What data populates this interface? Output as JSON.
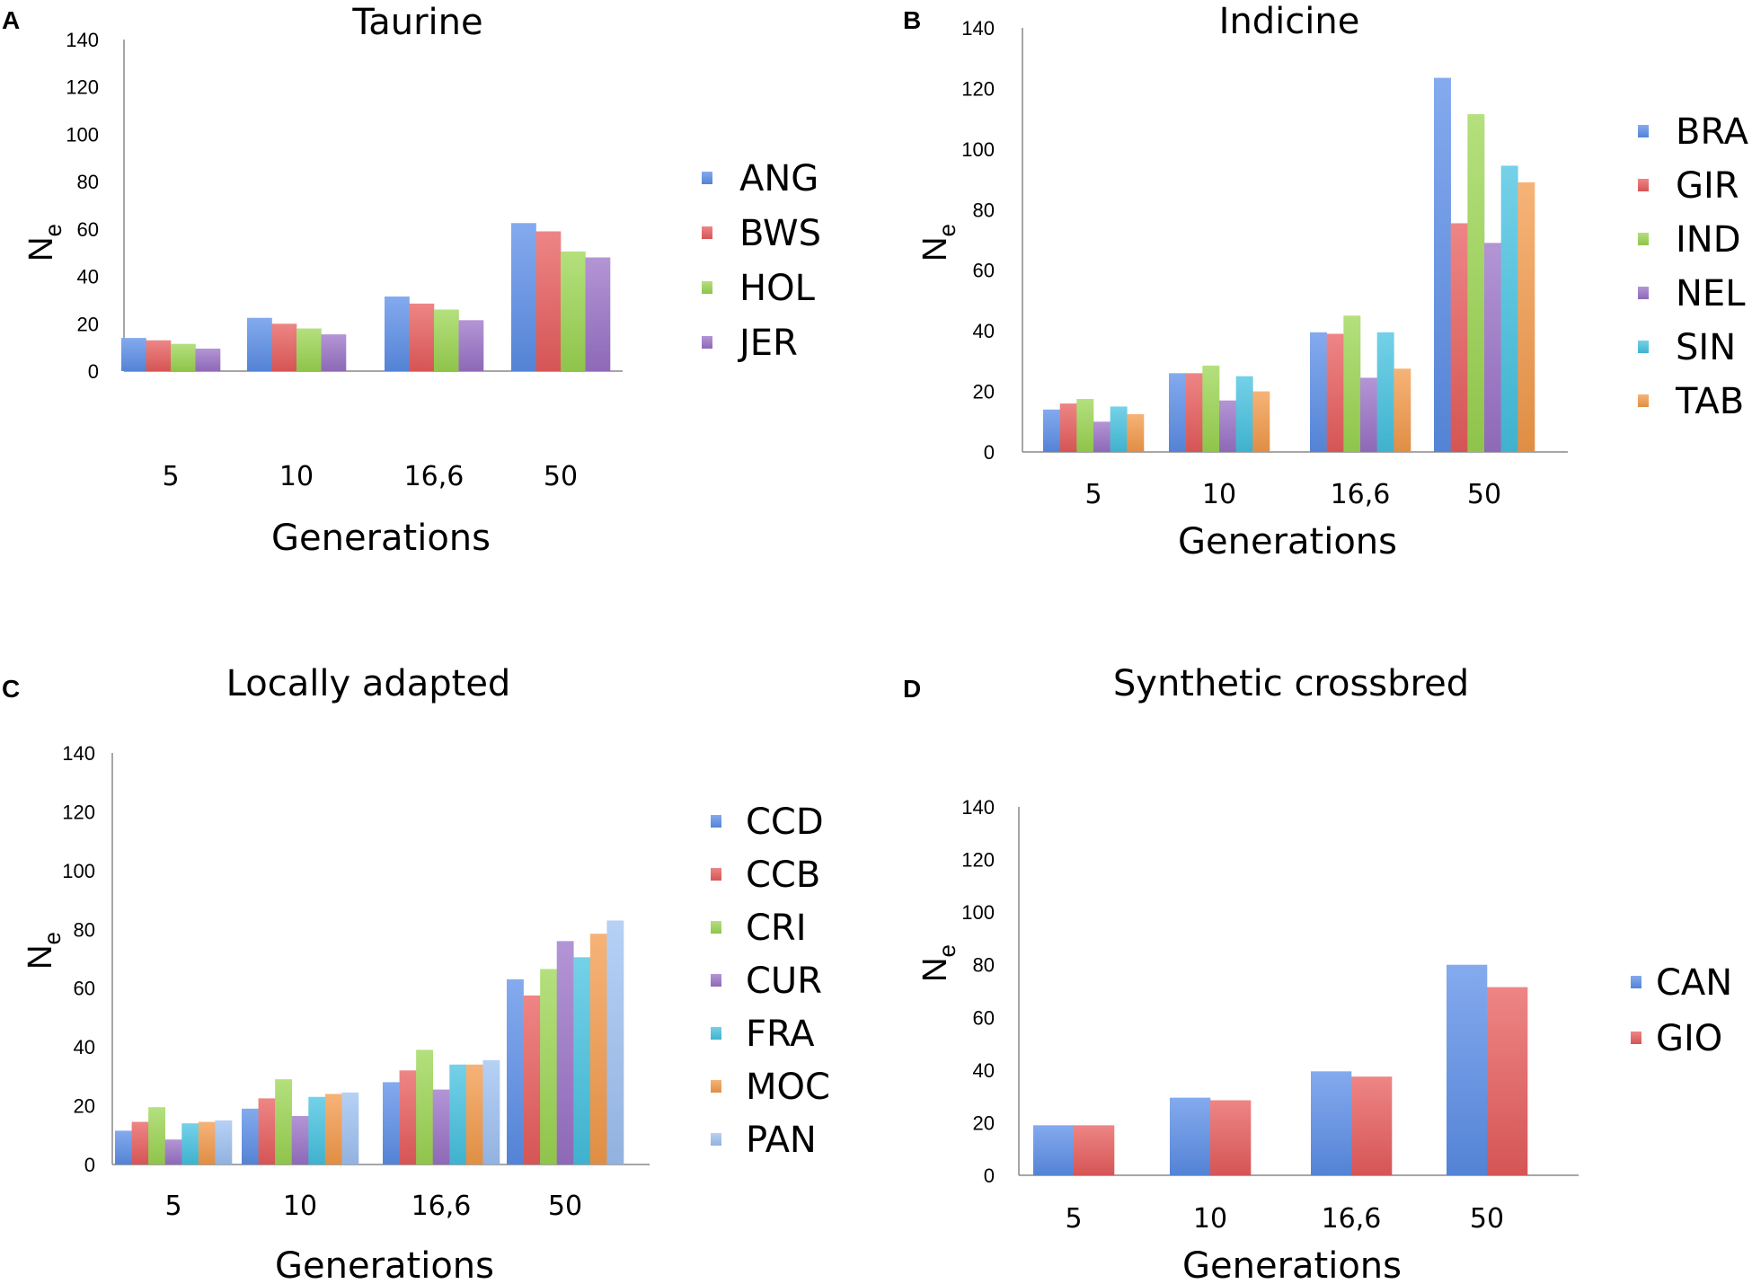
{
  "colors": {
    "ANG": "#5b8ee8",
    "BWS": "#e85c5c",
    "HOL": "#9bd552",
    "JER": "#9a72c7",
    "BRA": "#5b8ee8",
    "GIR": "#e85c5c",
    "IND": "#9bd552",
    "NEL": "#9a72c7",
    "SIN": "#45c1e0",
    "TAB": "#f39a4a",
    "CCD": "#5b8ee8",
    "CCB": "#e85c5c",
    "CRI": "#9bd552",
    "CUR": "#9a72c7",
    "FRA": "#45c1e0",
    "MOC": "#f39a4a",
    "PAN": "#9fc2f2",
    "CAN": "#5b8ee8",
    "GIO": "#e85c5c"
  },
  "chart_data": [
    {
      "panel": "A",
      "type": "bar",
      "title": "Taurine",
      "xlabel": "Generations",
      "ylabel": "N",
      "ylabel_sub": "e",
      "ylim": [
        0,
        140
      ],
      "yticks": [
        "0",
        "20",
        "40",
        "60",
        "80",
        "100",
        "120",
        "140"
      ],
      "categories": [
        "5",
        "10",
        "16,6",
        "50"
      ],
      "legend_position": "right",
      "series": [
        {
          "name": "ANG",
          "values": [
            14,
            22.5,
            31.5,
            62.5
          ]
        },
        {
          "name": "BWS",
          "values": [
            13,
            20,
            28.5,
            59
          ]
        },
        {
          "name": "HOL",
          "values": [
            11.5,
            18,
            26,
            50.5
          ]
        },
        {
          "name": "JER",
          "values": [
            9.5,
            15.5,
            21.5,
            48
          ]
        }
      ]
    },
    {
      "panel": "B",
      "type": "bar",
      "title": "Indicine",
      "xlabel": "Generations",
      "ylabel": "N",
      "ylabel_sub": "e",
      "ylim": [
        0,
        140
      ],
      "yticks": [
        "0",
        "20",
        "40",
        "60",
        "80",
        "100",
        "120",
        "140"
      ],
      "categories": [
        "5",
        "10",
        "16,6",
        "50"
      ],
      "legend_position": "right",
      "series": [
        {
          "name": "BRA",
          "values": [
            14,
            26,
            39.5,
            123.5
          ]
        },
        {
          "name": "GIR",
          "values": [
            16,
            26,
            39,
            75.5
          ]
        },
        {
          "name": "IND",
          "values": [
            17.5,
            28.5,
            45,
            111.5
          ]
        },
        {
          "name": "NEL",
          "values": [
            10,
            17,
            24.5,
            69
          ]
        },
        {
          "name": "SIN",
          "values": [
            15,
            25,
            39.5,
            94.5
          ]
        },
        {
          "name": "TAB",
          "values": [
            12.5,
            20,
            27.5,
            89
          ]
        }
      ]
    },
    {
      "panel": "C",
      "type": "bar",
      "title": "Locally adapted",
      "xlabel": "Generations",
      "ylabel": "N",
      "ylabel_sub": "e",
      "ylim": [
        0,
        140
      ],
      "yticks": [
        "0",
        "20",
        "40",
        "60",
        "80",
        "100",
        "120",
        "140"
      ],
      "categories": [
        "5",
        "10",
        "16,6",
        "50"
      ],
      "legend_position": "right",
      "series": [
        {
          "name": "CCD",
          "values": [
            11.5,
            19,
            28,
            63
          ]
        },
        {
          "name": "CCB",
          "values": [
            14.5,
            22.5,
            32,
            57.5
          ]
        },
        {
          "name": "CRI",
          "values": [
            19.5,
            29,
            39,
            66.5
          ]
        },
        {
          "name": "CUR",
          "values": [
            8.5,
            16.5,
            25.5,
            76
          ]
        },
        {
          "name": "FRA",
          "values": [
            14,
            23,
            34,
            70.5
          ]
        },
        {
          "name": "MOC",
          "values": [
            14.5,
            24,
            34,
            78.5
          ]
        },
        {
          "name": "PAN",
          "values": [
            15,
            24.5,
            35.5,
            83
          ]
        }
      ]
    },
    {
      "panel": "D",
      "type": "bar",
      "title": "Synthetic crossbred",
      "xlabel": "Generations",
      "ylabel": "N",
      "ylabel_sub": "e",
      "ylim": [
        0,
        140
      ],
      "yticks": [
        "0",
        "20",
        "40",
        "60",
        "80",
        "100",
        "120",
        "140"
      ],
      "categories": [
        "5",
        "10",
        "16,6",
        "50"
      ],
      "legend_position": "right",
      "series": [
        {
          "name": "CAN",
          "values": [
            19,
            29.5,
            39.5,
            80
          ]
        },
        {
          "name": "GIO",
          "values": [
            19,
            28.5,
            37.5,
            71.5
          ]
        }
      ]
    }
  ]
}
